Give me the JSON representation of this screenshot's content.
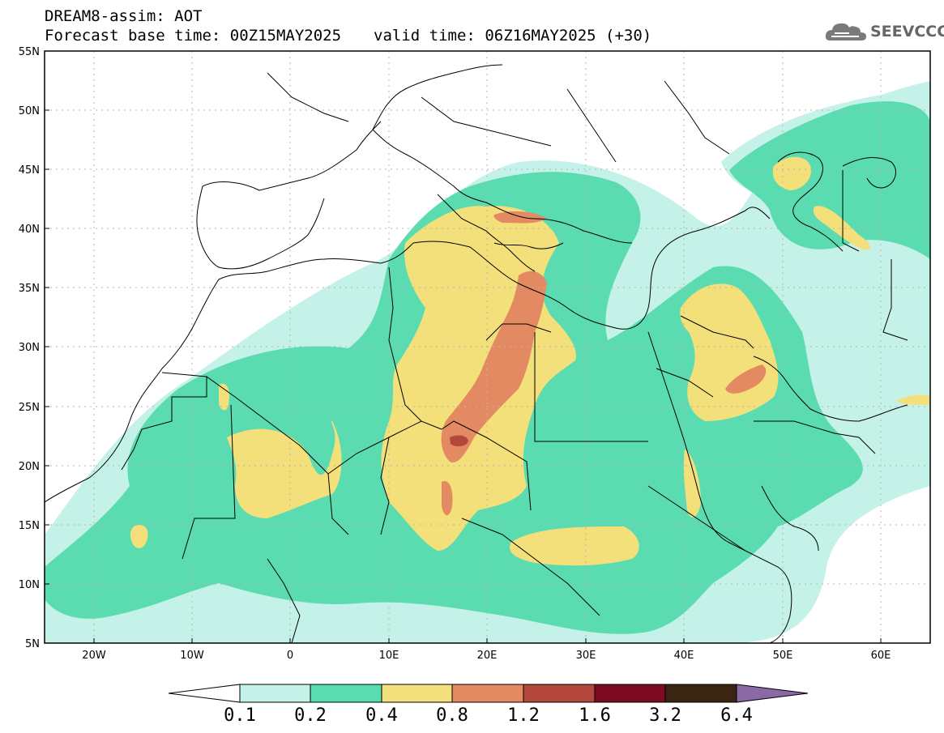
{
  "title_line1": "DREAM8-assim: AOT",
  "base_time": "Forecast base time: 00Z15MAY2025",
  "valid_time": "valid time: 06Z16MAY2025 (+30)",
  "logo_text": "SEEVCCC",
  "map": {
    "lon_range": [
      -25,
      65
    ],
    "lat_range": [
      5,
      55
    ],
    "lat_ticks": [
      {
        "value": 55,
        "label": "55N"
      },
      {
        "value": 50,
        "label": "50N"
      },
      {
        "value": 45,
        "label": "45N"
      },
      {
        "value": 40,
        "label": "40N"
      },
      {
        "value": 35,
        "label": "35N"
      },
      {
        "value": 30,
        "label": "30N"
      },
      {
        "value": 25,
        "label": "25N"
      },
      {
        "value": 20,
        "label": "20N"
      },
      {
        "value": 15,
        "label": "15N"
      },
      {
        "value": 10,
        "label": "10N"
      },
      {
        "value": 5,
        "label": "5N"
      }
    ],
    "lon_ticks": [
      {
        "value": -20,
        "label": "20W"
      },
      {
        "value": -10,
        "label": "10W"
      },
      {
        "value": 0,
        "label": "0"
      },
      {
        "value": 10,
        "label": "10E"
      },
      {
        "value": 20,
        "label": "20E"
      },
      {
        "value": 30,
        "label": "30E"
      },
      {
        "value": 40,
        "label": "40E"
      },
      {
        "value": 50,
        "label": "50E"
      },
      {
        "value": 60,
        "label": "60E"
      }
    ]
  },
  "colorbar": {
    "labels": [
      "0.1",
      "0.2",
      "0.4",
      "0.8",
      "1.2",
      "1.6",
      "3.2",
      "6.4"
    ],
    "colors": [
      "#ffffff",
      "#c4f1e8",
      "#5adcb0",
      "#f4e07a",
      "#e48a62",
      "#b3473c",
      "#7e0b24",
      "#3a2513",
      "#8a6aa4"
    ]
  },
  "colors": {
    "level1": "#c4f1e8",
    "level2": "#5adcb0",
    "level3": "#f4e07a",
    "level4": "#e48a62",
    "level5": "#b3473c"
  }
}
